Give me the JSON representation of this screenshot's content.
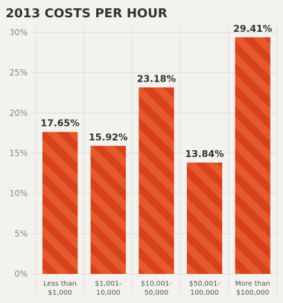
{
  "chart_data": {
    "type": "bar",
    "title": "2013 COSTS PER HOUR",
    "categories": [
      [
        "Less than",
        "$1,000"
      ],
      [
        "$1,001-",
        "10,000"
      ],
      [
        "$10,001-",
        "50,000"
      ],
      [
        "$50,001-",
        "100,000"
      ],
      [
        "More than",
        "$100,000"
      ]
    ],
    "values": [
      17.65,
      15.92,
      23.18,
      13.84,
      29.41
    ],
    "data_labels": [
      "17.65%",
      "15.92%",
      "23.18%",
      "13.84%",
      "29.41%"
    ],
    "yticks": [
      0,
      5,
      10,
      15,
      20,
      25,
      30
    ],
    "ytick_labels": [
      "0%",
      "5%",
      "10%",
      "15%",
      "20%",
      "25%",
      "30%"
    ],
    "ylim": [
      0,
      30
    ],
    "grid": true,
    "legend": "none",
    "colors": {
      "bar": "#d9411e",
      "stripe": "#e55a2b",
      "grid": "#dcdcdc",
      "text": "#333333",
      "tick": "#888888"
    }
  }
}
